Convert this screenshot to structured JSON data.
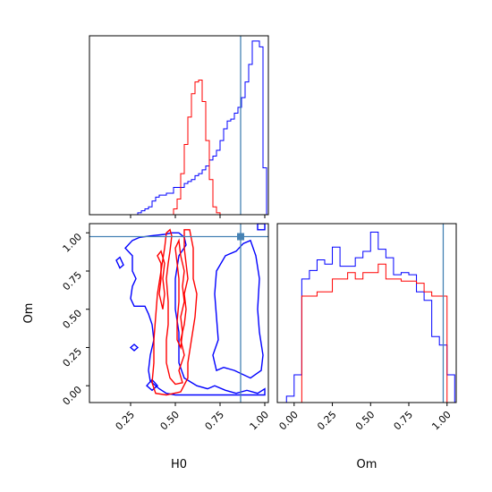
{
  "chart_data": {
    "type": "corner",
    "parameters": [
      "H0",
      "Om"
    ],
    "truth": {
      "H0": 0.865,
      "Om": 0.975
    },
    "colors": {
      "blue": "#0000ff",
      "red": "#ff0000",
      "truth": "#4682b4"
    },
    "axis_ticks": [
      0.25,
      0.5,
      0.75,
      1.0
    ],
    "axis_tick_labels": [
      "0.25",
      "0.50",
      "0.75",
      "1.00"
    ],
    "om_ticks": [
      0.0,
      0.25,
      0.5,
      0.75,
      1.0
    ],
    "om_tick_labels": [
      "0.00",
      "0.25",
      "0.50",
      "0.75",
      "1.00"
    ],
    "xlabels": {
      "H0": "H0",
      "Om": "Om"
    },
    "ylabel": "Om",
    "h0_range": [
      0.02,
      1.02
    ],
    "om_range": [
      -0.11,
      1.06
    ],
    "hist_H0": {
      "bin_edges": [
        0.21,
        0.23,
        0.25,
        0.27,
        0.29,
        0.31,
        0.33,
        0.35,
        0.37,
        0.39,
        0.41,
        0.43,
        0.45,
        0.47,
        0.49,
        0.51,
        0.53,
        0.55,
        0.57,
        0.59,
        0.61,
        0.63,
        0.65,
        0.67,
        0.69,
        0.71,
        0.73,
        0.75,
        0.77,
        0.79,
        0.81,
        0.83,
        0.85,
        0.87,
        0.89,
        0.91,
        0.93,
        0.95,
        0.97,
        0.99,
        1.01
      ],
      "blue": [
        0,
        0,
        0,
        0,
        1,
        2,
        3,
        4,
        7,
        9,
        10,
        10,
        11,
        11,
        14,
        14,
        14,
        16,
        17,
        18,
        20,
        21,
        23,
        25,
        28,
        30,
        33,
        38,
        44,
        48,
        49,
        52,
        55,
        60,
        68,
        77,
        89,
        89,
        86,
        24
      ],
      "red": [
        0,
        0,
        0,
        0,
        0,
        0,
        0,
        0,
        0,
        0,
        0,
        0,
        0,
        0,
        3,
        8,
        21,
        36,
        50,
        62,
        68,
        69,
        58,
        38,
        18,
        4,
        1,
        0,
        0,
        0,
        0,
        0,
        0,
        0,
        0,
        0,
        0,
        0,
        0,
        0
      ]
    },
    "hist_Om": {
      "bin_edges": [
        -0.05,
        0.0,
        0.05,
        0.1,
        0.15,
        0.2,
        0.25,
        0.3,
        0.35,
        0.4,
        0.45,
        0.5,
        0.55,
        0.6,
        0.65,
        0.7,
        0.75,
        0.8,
        0.85,
        0.9,
        0.95,
        1.0,
        1.05
      ],
      "blue": [
        3,
        13,
        58,
        62,
        67,
        65,
        73,
        64,
        64,
        68,
        71,
        80,
        72,
        68,
        60,
        61,
        60,
        52,
        48,
        31,
        27,
        13
      ],
      "red": [
        0,
        0,
        50,
        50,
        52,
        52,
        58,
        58,
        61,
        58,
        61,
        61,
        65,
        58,
        58,
        57,
        57,
        56,
        52,
        50,
        50,
        0
      ]
    },
    "contours_2d": {
      "blue": [
        [
          [
            0.22,
            0.9
          ],
          [
            0.26,
            0.95
          ],
          [
            0.3,
            0.97
          ],
          [
            0.36,
            0.98
          ],
          [
            0.44,
            0.99
          ],
          [
            0.48,
            1.0
          ],
          [
            0.52,
            1.0
          ],
          [
            0.55,
            0.97
          ],
          [
            0.56,
            0.92
          ],
          [
            0.52,
            0.85
          ],
          [
            0.5,
            0.7
          ],
          [
            0.5,
            0.5
          ],
          [
            0.52,
            0.35
          ],
          [
            0.52,
            0.15
          ],
          [
            0.55,
            0.05
          ],
          [
            0.62,
            0.0
          ],
          [
            0.68,
            -0.02
          ],
          [
            0.72,
            0.0
          ],
          [
            0.78,
            -0.03
          ],
          [
            0.84,
            -0.05
          ],
          [
            0.9,
            -0.03
          ],
          [
            0.96,
            -0.05
          ],
          [
            1.0,
            -0.02
          ],
          [
            1.0,
            -0.06
          ],
          [
            0.9,
            -0.06
          ],
          [
            0.78,
            -0.06
          ],
          [
            0.62,
            -0.06
          ],
          [
            0.5,
            -0.06
          ],
          [
            0.45,
            -0.05
          ],
          [
            0.41,
            -0.02
          ],
          [
            0.36,
            0.03
          ],
          [
            0.35,
            0.1
          ],
          [
            0.36,
            0.2
          ],
          [
            0.38,
            0.3
          ],
          [
            0.37,
            0.4
          ],
          [
            0.35,
            0.47
          ],
          [
            0.33,
            0.52
          ],
          [
            0.27,
            0.52
          ],
          [
            0.25,
            0.57
          ],
          [
            0.26,
            0.65
          ],
          [
            0.28,
            0.7
          ],
          [
            0.26,
            0.75
          ],
          [
            0.26,
            0.85
          ],
          [
            0.22,
            0.9
          ]
        ],
        [
          [
            0.78,
            0.85
          ],
          [
            0.84,
            0.88
          ],
          [
            0.88,
            0.93
          ],
          [
            0.92,
            0.95
          ],
          [
            0.95,
            0.85
          ],
          [
            0.97,
            0.7
          ],
          [
            0.96,
            0.5
          ],
          [
            0.97,
            0.35
          ],
          [
            0.99,
            0.2
          ],
          [
            0.98,
            0.1
          ],
          [
            0.92,
            0.05
          ],
          [
            0.83,
            0.1
          ],
          [
            0.77,
            0.12
          ],
          [
            0.73,
            0.1
          ],
          [
            0.71,
            0.2
          ],
          [
            0.74,
            0.3
          ],
          [
            0.73,
            0.45
          ],
          [
            0.72,
            0.6
          ],
          [
            0.73,
            0.75
          ],
          [
            0.78,
            0.85
          ]
        ],
        [
          [
            0.17,
            0.82
          ],
          [
            0.19,
            0.77
          ],
          [
            0.21,
            0.79
          ],
          [
            0.19,
            0.84
          ],
          [
            0.17,
            0.82
          ]
        ],
        [
          [
            0.25,
            0.25
          ],
          [
            0.27,
            0.23
          ],
          [
            0.29,
            0.25
          ],
          [
            0.27,
            0.27
          ],
          [
            0.25,
            0.25
          ]
        ],
        [
          [
            0.34,
            0.0
          ],
          [
            0.37,
            0.04
          ],
          [
            0.4,
            0.0
          ],
          [
            0.37,
            -0.03
          ],
          [
            0.34,
            0.0
          ]
        ],
        [
          [
            0.96,
            1.02
          ],
          [
            1.0,
            1.02
          ],
          [
            1.0,
            1.06
          ],
          [
            0.96,
            1.06
          ],
          [
            0.96,
            1.02
          ]
        ]
      ],
      "red": [
        [
          [
            0.37,
            0.02
          ],
          [
            0.38,
            0.15
          ],
          [
            0.38,
            0.3
          ],
          [
            0.39,
            0.45
          ],
          [
            0.4,
            0.6
          ],
          [
            0.42,
            0.75
          ],
          [
            0.44,
            0.9
          ],
          [
            0.45,
            1.0
          ],
          [
            0.47,
            1.02
          ],
          [
            0.48,
            0.98
          ],
          [
            0.47,
            0.88
          ],
          [
            0.46,
            0.8
          ],
          [
            0.45,
            0.7
          ],
          [
            0.46,
            0.55
          ],
          [
            0.46,
            0.4
          ],
          [
            0.45,
            0.3
          ],
          [
            0.45,
            0.15
          ],
          [
            0.47,
            0.05
          ],
          [
            0.5,
            0.01
          ],
          [
            0.54,
            0.02
          ],
          [
            0.52,
            0.1
          ],
          [
            0.55,
            0.2
          ],
          [
            0.53,
            0.3
          ],
          [
            0.55,
            0.4
          ],
          [
            0.56,
            0.5
          ],
          [
            0.55,
            0.6
          ],
          [
            0.57,
            0.7
          ],
          [
            0.56,
            0.8
          ],
          [
            0.55,
            0.9
          ],
          [
            0.55,
            1.02
          ],
          [
            0.58,
            1.02
          ],
          [
            0.6,
            0.9
          ],
          [
            0.6,
            0.8
          ],
          [
            0.6,
            0.7
          ],
          [
            0.62,
            0.6
          ],
          [
            0.61,
            0.45
          ],
          [
            0.59,
            0.3
          ],
          [
            0.57,
            0.15
          ],
          [
            0.57,
            0.05
          ],
          [
            0.53,
            -0.04
          ],
          [
            0.45,
            -0.06
          ],
          [
            0.39,
            -0.05
          ],
          [
            0.37,
            0.02
          ]
        ],
        [
          [
            0.5,
            0.9
          ],
          [
            0.51,
            0.8
          ],
          [
            0.52,
            0.7
          ],
          [
            0.52,
            0.55
          ],
          [
            0.51,
            0.42
          ],
          [
            0.51,
            0.3
          ],
          [
            0.53,
            0.25
          ],
          [
            0.54,
            0.35
          ],
          [
            0.53,
            0.45
          ],
          [
            0.55,
            0.55
          ],
          [
            0.54,
            0.65
          ],
          [
            0.55,
            0.75
          ],
          [
            0.53,
            0.85
          ],
          [
            0.52,
            0.95
          ],
          [
            0.5,
            0.9
          ]
        ],
        [
          [
            0.4,
            0.85
          ],
          [
            0.42,
            0.8
          ],
          [
            0.42,
            0.7
          ],
          [
            0.41,
            0.6
          ],
          [
            0.43,
            0.5
          ],
          [
            0.44,
            0.6
          ],
          [
            0.43,
            0.7
          ],
          [
            0.44,
            0.8
          ],
          [
            0.42,
            0.88
          ],
          [
            0.4,
            0.85
          ]
        ]
      ]
    }
  }
}
